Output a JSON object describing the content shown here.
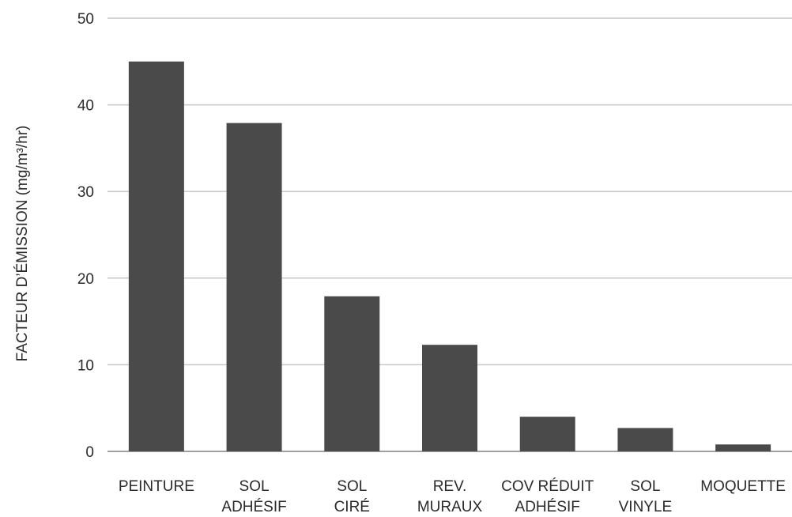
{
  "chart_data": {
    "type": "bar",
    "title": "",
    "xlabel": "",
    "ylabel": "FACTEUR D’ÉMISSION (mg/m³/hr)",
    "ylim": [
      0,
      50
    ],
    "yticks": [
      0,
      10,
      20,
      30,
      40,
      50
    ],
    "grid": true,
    "categories": [
      [
        "PEINTURE"
      ],
      [
        "SOL",
        "ADHÉSIF"
      ],
      [
        "SOL",
        "CIRÉ"
      ],
      [
        "REV.",
        "MURAUX"
      ],
      [
        "COV RÉDUIT",
        "ADHÉSIF"
      ],
      [
        "SOL",
        "VINYLE"
      ],
      [
        "MOQUETTE"
      ]
    ],
    "values": [
      45,
      37.9,
      17.9,
      12.3,
      4,
      2.7,
      0.8
    ],
    "colors": {
      "bar": "#4a4a4a",
      "grid": "#c8c8c8",
      "axis": "#a0a0a0",
      "text": "#2a2a2a"
    }
  }
}
